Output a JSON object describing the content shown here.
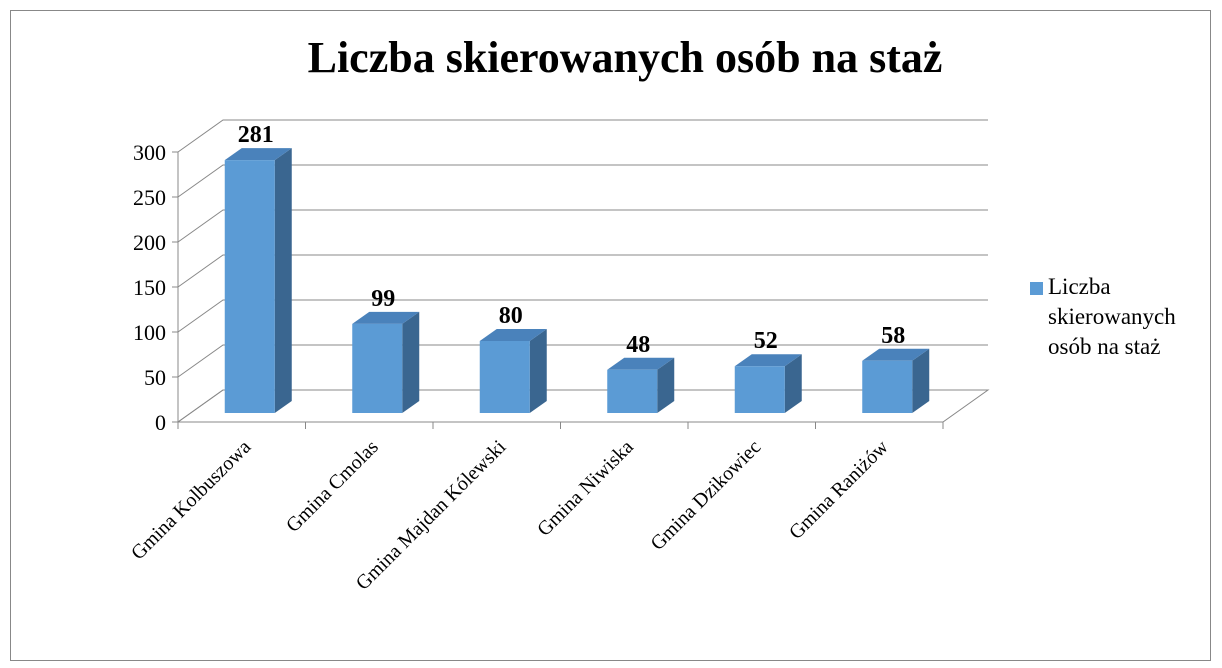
{
  "chart_data": {
    "type": "bar3d",
    "title": "Liczba skierowanych osób na staż",
    "categories": [
      "Gmina Kolbuszowa",
      "Gmina Cmolas",
      "Gmina Majdan Kólewski",
      "Gmina Niwiska",
      "Gmina Dzikowiec",
      "Gmina Raniżów"
    ],
    "series": [
      {
        "name": "Liczba skierowanych osób na staż",
        "color": "#5b9bd5",
        "values": [
          281,
          99,
          80,
          48,
          52,
          58
        ]
      }
    ],
    "ylim": [
      0,
      300
    ],
    "yticks": [
      0,
      50,
      100,
      150,
      200,
      250,
      300
    ],
    "grid": true,
    "legend": "right"
  }
}
